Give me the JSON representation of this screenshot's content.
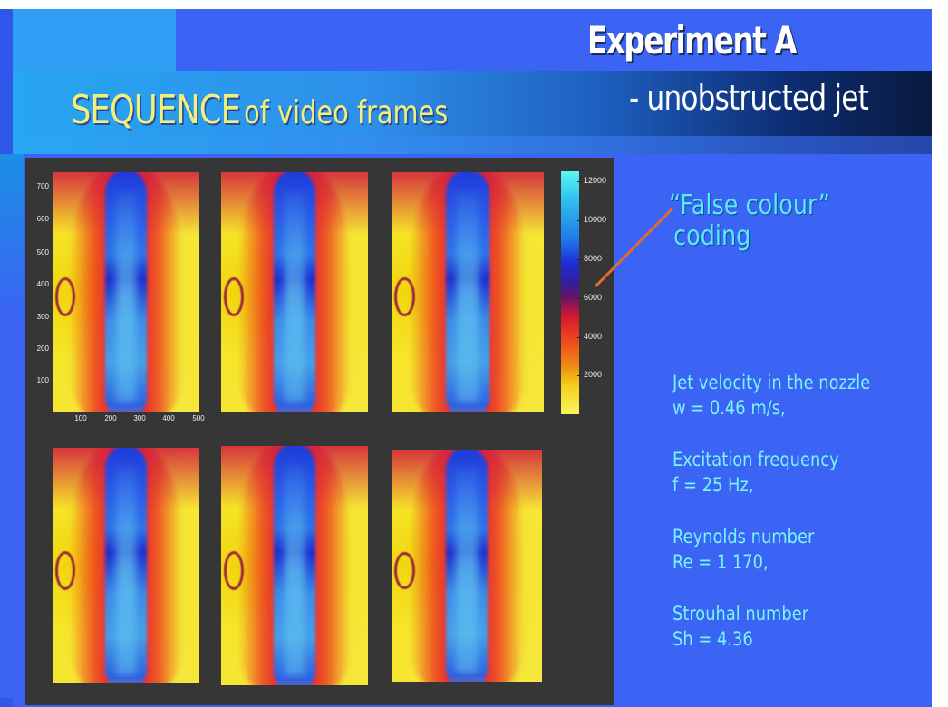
{
  "heading": {
    "experiment": "Experiment A",
    "subtitle": "- unobstructed jet",
    "sequence_big": "SEQUENCE",
    "sequence_rest": "of video frames"
  },
  "axes": {
    "y_ticks": [
      "700",
      "600",
      "500",
      "400",
      "300",
      "200",
      "100"
    ],
    "x_ticks": [
      "100",
      "200",
      "300",
      "400",
      "500"
    ]
  },
  "colorbar": {
    "ticks": [
      "12000",
      "10000",
      "8000",
      "6000",
      "4000",
      "2000"
    ],
    "gradient": [
      "#5ff6f2",
      "#1c7ae9",
      "#1e2cd6",
      "#6a1464",
      "#d71830",
      "#f08a14",
      "#fbf65c"
    ]
  },
  "annotation": {
    "line1": "“False colour”",
    "line2": "coding",
    "color": "#54ecf6"
  },
  "parameters": [
    {
      "label": "Jet velocity in the nozzle",
      "value": "w = 0.46 m/s,"
    },
    {
      "label": "Excitation frequency",
      "value": "f = 25 Hz,"
    },
    {
      "label": "Reynolds number",
      "value": "Re = 1 170,"
    },
    {
      "label": "Strouhal number",
      "value": "Sh = 4.36"
    }
  ],
  "frames_count": 6
}
